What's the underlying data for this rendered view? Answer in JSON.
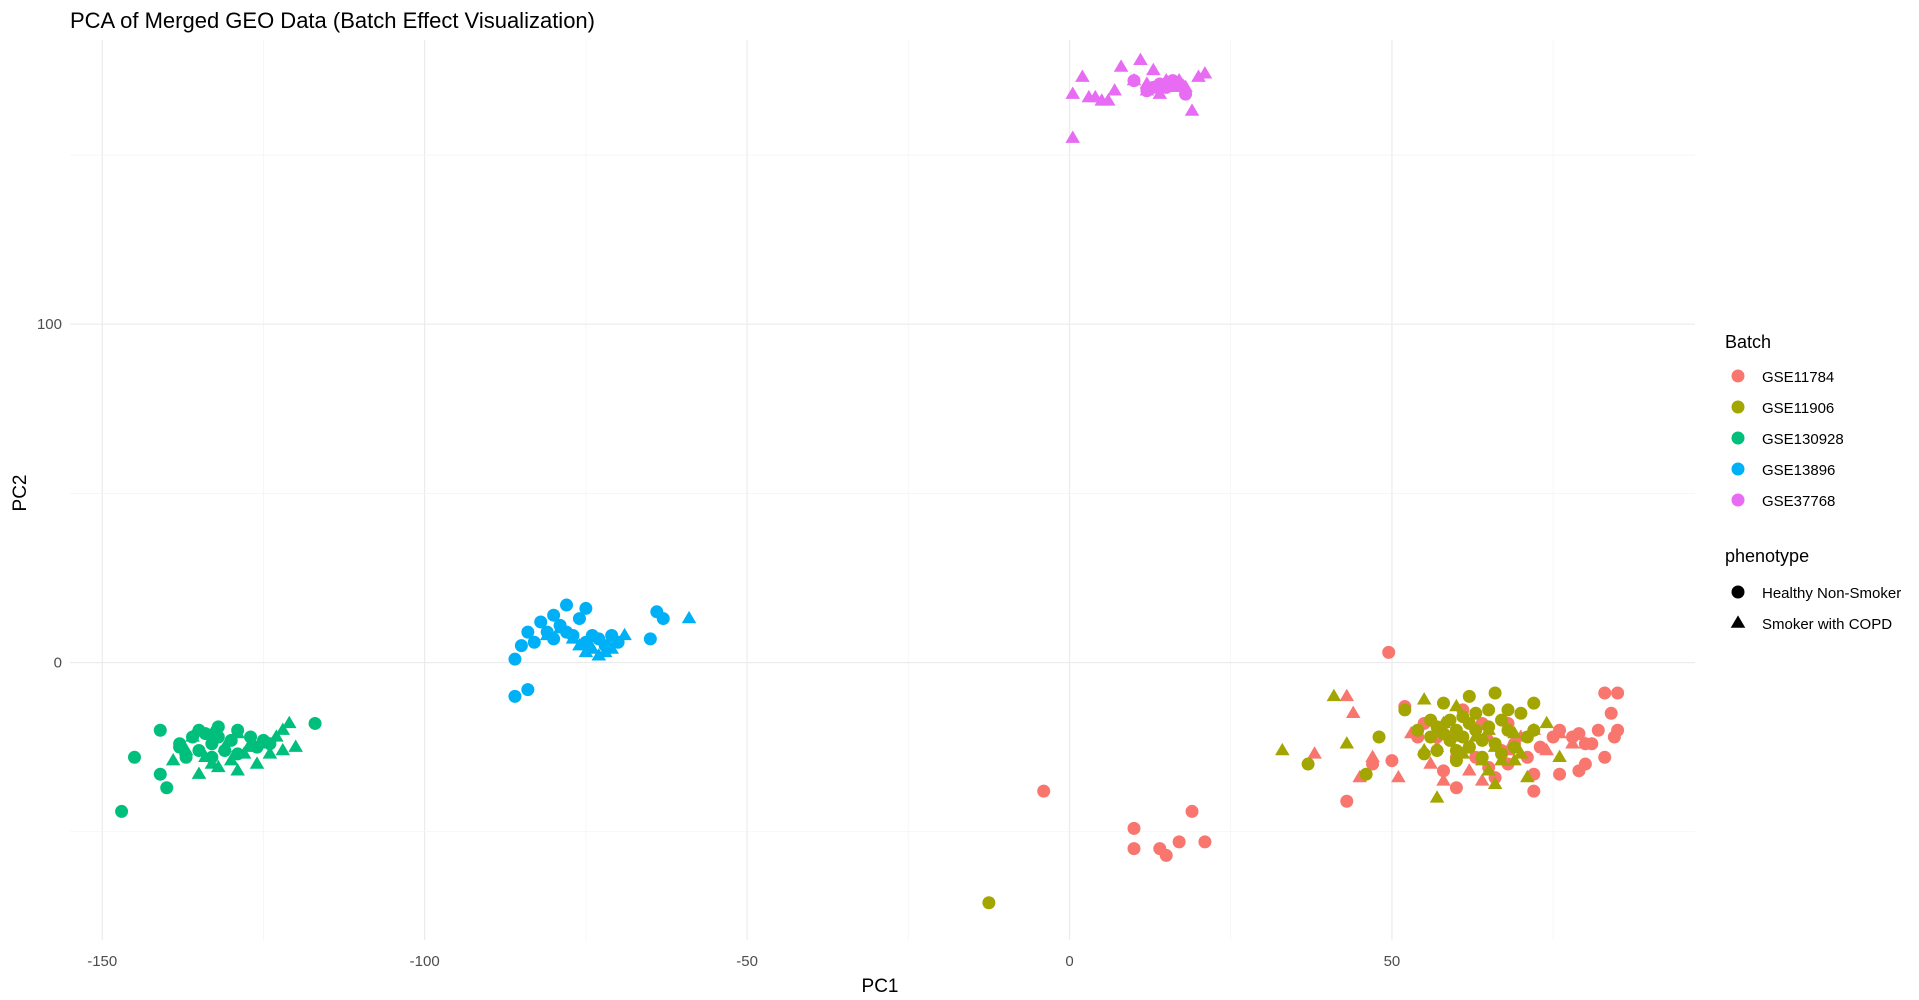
{
  "chart_data": {
    "type": "scatter",
    "title": "PCA of Merged GEO Data (Batch Effect Visualization)",
    "xlabel": "PC1",
    "ylabel": "PC2",
    "xlim": [
      -155,
      97
    ],
    "ylim": [
      -82,
      184
    ],
    "x_ticks": [
      -150,
      -100,
      -50,
      0,
      50
    ],
    "y_ticks": [
      0,
      100
    ],
    "grid": true,
    "legend_position": "right",
    "color_legend": {
      "title": "Batch",
      "entries": [
        {
          "name": "GSE11784",
          "color": "#F8766D"
        },
        {
          "name": "GSE11906",
          "color": "#A3A500"
        },
        {
          "name": "GSE130928",
          "color": "#00BF7D"
        },
        {
          "name": "GSE13896",
          "color": "#00B0F6"
        },
        {
          "name": "GSE37768",
          "color": "#E76BF3"
        }
      ]
    },
    "shape_legend": {
      "title": "phenotype",
      "entries": [
        {
          "name": "Healthy Non-Smoker",
          "shape": "circle"
        },
        {
          "name": "Smoker with COPD",
          "shape": "triangle"
        }
      ]
    },
    "series": [
      {
        "batch": "GSE11784",
        "phenotype": "Healthy Non-Smoker",
        "points": [
          [
            49.5,
            3
          ],
          [
            52,
            -13
          ],
          [
            55,
            -18
          ],
          [
            58,
            -21
          ],
          [
            62,
            -25
          ],
          [
            63,
            -28
          ],
          [
            65,
            -31
          ],
          [
            67,
            -26
          ],
          [
            69,
            -24
          ],
          [
            71,
            -28
          ],
          [
            73,
            -25
          ],
          [
            75,
            -22
          ],
          [
            76,
            -20
          ],
          [
            78,
            -22
          ],
          [
            79,
            -21
          ],
          [
            80,
            -24
          ],
          [
            81,
            -24
          ],
          [
            82,
            -20
          ],
          [
            83,
            -9
          ],
          [
            84,
            -15
          ],
          [
            84.5,
            -22
          ],
          [
            85,
            -9
          ],
          [
            85,
            -20
          ],
          [
            83,
            -28
          ],
          [
            79,
            -32
          ],
          [
            76,
            -33
          ],
          [
            72,
            -33
          ],
          [
            68,
            -30
          ],
          [
            60,
            -28
          ],
          [
            57,
            -22
          ],
          [
            54,
            -22
          ],
          [
            50,
            -29
          ],
          [
            47,
            -30
          ],
          [
            43,
            -41
          ],
          [
            58,
            -32
          ],
          [
            60,
            -37
          ],
          [
            66,
            -34
          ],
          [
            72,
            -38
          ],
          [
            80,
            -30
          ],
          [
            64,
            -18
          ],
          [
            68,
            -18
          ],
          [
            61,
            -14
          ],
          [
            59,
            -22
          ],
          [
            -4,
            -38
          ],
          [
            10,
            -49
          ],
          [
            19,
            -44
          ],
          [
            10,
            -55
          ],
          [
            14,
            -55
          ],
          [
            15,
            -57
          ],
          [
            17,
            -53
          ],
          [
            21,
            -53
          ]
        ]
      },
      {
        "batch": "GSE11784",
        "phenotype": "Smoker with COPD",
        "points": [
          [
            43,
            -10
          ],
          [
            38,
            -27
          ],
          [
            44,
            -15
          ],
          [
            47,
            -28
          ],
          [
            45,
            -34
          ],
          [
            51,
            -34
          ],
          [
            53,
            -21
          ],
          [
            56,
            -30
          ],
          [
            58,
            -35
          ],
          [
            64,
            -35
          ],
          [
            62,
            -32
          ],
          [
            69,
            -24
          ],
          [
            72,
            -20
          ],
          [
            74,
            -26
          ],
          [
            76,
            -21
          ],
          [
            78,
            -24
          ],
          [
            80,
            -24
          ],
          [
            68,
            -26
          ],
          [
            70,
            -22
          ],
          [
            65,
            -22
          ],
          [
            57,
            -25
          ]
        ]
      },
      {
        "batch": "GSE11906",
        "phenotype": "Healthy Non-Smoker",
        "points": [
          [
            48,
            -22
          ],
          [
            52,
            -14
          ],
          [
            54,
            -20
          ],
          [
            55,
            -27
          ],
          [
            56,
            -22
          ],
          [
            57,
            -19
          ],
          [
            57,
            -26
          ],
          [
            58,
            -12
          ],
          [
            59,
            -17
          ],
          [
            59,
            -23
          ],
          [
            60,
            -20
          ],
          [
            60,
            -26
          ],
          [
            61,
            -16
          ],
          [
            61,
            -22
          ],
          [
            62,
            -25
          ],
          [
            62,
            -10
          ],
          [
            63,
            -15
          ],
          [
            63,
            -20
          ],
          [
            64,
            -23
          ],
          [
            64,
            -28
          ],
          [
            65,
            -14
          ],
          [
            65,
            -19
          ],
          [
            66,
            -9
          ],
          [
            66,
            -24
          ],
          [
            67,
            -17
          ],
          [
            67,
            -27
          ],
          [
            68,
            -14
          ],
          [
            68,
            -20
          ],
          [
            69,
            -25
          ],
          [
            70,
            -15
          ],
          [
            71,
            -22
          ],
          [
            72,
            -12
          ],
          [
            72,
            -20
          ],
          [
            46,
            -33
          ],
          [
            37,
            -30
          ],
          [
            -12.5,
            -71
          ],
          [
            60,
            -29
          ],
          [
            62,
            -18
          ],
          [
            58,
            -21
          ],
          [
            56,
            -17
          ]
        ]
      },
      {
        "batch": "GSE11906",
        "phenotype": "Smoker with COPD",
        "points": [
          [
            41,
            -10
          ],
          [
            33,
            -26
          ],
          [
            43,
            -24
          ],
          [
            55,
            -26
          ],
          [
            55,
            -11
          ],
          [
            58,
            -18
          ],
          [
            60,
            -13
          ],
          [
            60,
            -22
          ],
          [
            61,
            -27
          ],
          [
            63,
            -22
          ],
          [
            64,
            -29
          ],
          [
            65,
            -20
          ],
          [
            65,
            -32
          ],
          [
            66,
            -25
          ],
          [
            66,
            -36
          ],
          [
            67,
            -29
          ],
          [
            69,
            -21
          ],
          [
            69,
            -29
          ],
          [
            70,
            -27
          ],
          [
            71,
            -34
          ],
          [
            74,
            -18
          ],
          [
            76,
            -28
          ],
          [
            57,
            -40
          ]
        ]
      },
      {
        "batch": "GSE130928",
        "phenotype": "Healthy Non-Smoker",
        "points": [
          [
            -147,
            -44
          ],
          [
            -145,
            -28
          ],
          [
            -141,
            -33
          ],
          [
            -140,
            -37
          ],
          [
            -141,
            -20
          ],
          [
            -138,
            -25
          ],
          [
            -137,
            -28
          ],
          [
            -136,
            -22
          ],
          [
            -135,
            -26
          ],
          [
            -134,
            -21
          ],
          [
            -133,
            -24
          ],
          [
            -133,
            -28
          ],
          [
            -132,
            -19
          ],
          [
            -131,
            -26
          ],
          [
            -130,
            -23
          ],
          [
            -129,
            -20
          ],
          [
            -129,
            -27
          ],
          [
            -127,
            -22
          ],
          [
            -126,
            -25
          ],
          [
            -125,
            -23
          ],
          [
            -124,
            -24
          ],
          [
            -117,
            -18
          ],
          [
            -138,
            -24
          ],
          [
            -135,
            -20
          ],
          [
            -132,
            -22
          ]
        ]
      },
      {
        "batch": "GSE130928",
        "phenotype": "Smoker with COPD",
        "points": [
          [
            -139,
            -29
          ],
          [
            -137,
            -26
          ],
          [
            -135,
            -33
          ],
          [
            -134,
            -28
          ],
          [
            -133,
            -21
          ],
          [
            -132,
            -31
          ],
          [
            -131,
            -25
          ],
          [
            -130,
            -29
          ],
          [
            -129,
            -21
          ],
          [
            -128,
            -27
          ],
          [
            -127,
            -24
          ],
          [
            -126,
            -30
          ],
          [
            -125,
            -24
          ],
          [
            -124,
            -27
          ],
          [
            -123,
            -22
          ],
          [
            -122,
            -26
          ],
          [
            -121,
            -18
          ],
          [
            -122,
            -20
          ],
          [
            -120,
            -25
          ],
          [
            -136,
            -22
          ],
          [
            -133,
            -30
          ],
          [
            -129,
            -32
          ],
          [
            -127,
            -25
          ]
        ]
      },
      {
        "batch": "GSE13896",
        "phenotype": "Healthy Non-Smoker",
        "points": [
          [
            -86,
            1
          ],
          [
            -85,
            5
          ],
          [
            -84,
            9
          ],
          [
            -83,
            6
          ],
          [
            -82,
            12
          ],
          [
            -81,
            9
          ],
          [
            -80,
            14
          ],
          [
            -79,
            11
          ],
          [
            -78,
            17
          ],
          [
            -77,
            8
          ],
          [
            -76,
            13
          ],
          [
            -75,
            16
          ],
          [
            -75,
            6
          ],
          [
            -74,
            8
          ],
          [
            -73,
            7
          ],
          [
            -72,
            5
          ],
          [
            -71,
            8
          ],
          [
            -70,
            6
          ],
          [
            -65,
            7
          ],
          [
            -64,
            15
          ],
          [
            -63,
            13
          ],
          [
            -86,
            -10
          ],
          [
            -84,
            -8
          ],
          [
            -80,
            7
          ],
          [
            -78,
            9
          ]
        ]
      },
      {
        "batch": "GSE13896",
        "phenotype": "Smoker with COPD",
        "points": [
          [
            -81,
            8
          ],
          [
            -79,
            10
          ],
          [
            -77,
            7
          ],
          [
            -76,
            5
          ],
          [
            -75,
            3
          ],
          [
            -74,
            4
          ],
          [
            -73,
            2
          ],
          [
            -72,
            3
          ],
          [
            -69,
            8
          ],
          [
            -59,
            13
          ],
          [
            -71,
            4
          ]
        ]
      },
      {
        "batch": "GSE37768",
        "phenotype": "Healthy Non-Smoker",
        "points": [
          [
            10,
            172
          ],
          [
            13,
            170
          ],
          [
            16,
            172
          ],
          [
            18,
            168
          ],
          [
            14,
            171
          ],
          [
            17,
            171
          ],
          [
            12,
            169
          ],
          [
            15,
            170
          ]
        ]
      },
      {
        "batch": "GSE37768",
        "phenotype": "Smoker with COPD",
        "points": [
          [
            0.5,
            155
          ],
          [
            0.5,
            168
          ],
          [
            2,
            173
          ],
          [
            3,
            167
          ],
          [
            4,
            167
          ],
          [
            5,
            166
          ],
          [
            7,
            169
          ],
          [
            8,
            176
          ],
          [
            10,
            172
          ],
          [
            11,
            178
          ],
          [
            12,
            169
          ],
          [
            13,
            175
          ],
          [
            14,
            168
          ],
          [
            15,
            172
          ],
          [
            16,
            170
          ],
          [
            18,
            170
          ],
          [
            19,
            163
          ],
          [
            20,
            173
          ],
          [
            21,
            174
          ],
          [
            12,
            171
          ],
          [
            17,
            172
          ],
          [
            6,
            166
          ]
        ]
      }
    ]
  }
}
